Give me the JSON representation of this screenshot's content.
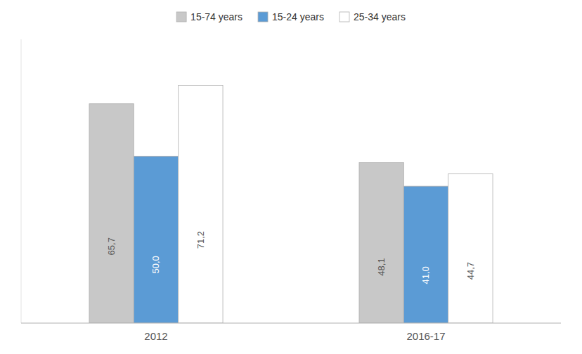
{
  "chart_data": {
    "type": "bar",
    "categories": [
      "2012",
      "2016-17"
    ],
    "series": [
      {
        "name": "15-74 years",
        "color": "#c8c8c8",
        "values": [
          65.7,
          48.1
        ],
        "value_labels": [
          "65,7",
          "48,1"
        ]
      },
      {
        "name": "15-24 years",
        "color": "#5b9bd5",
        "values": [
          50.0,
          41.0
        ],
        "value_labels": [
          "50,0",
          "41,0"
        ]
      },
      {
        "name": "25-34 years",
        "color": "#ffffff",
        "values": [
          71.2,
          44.7
        ],
        "value_labels": [
          "71,2",
          "44,7"
        ]
      }
    ],
    "ylim": [
      0,
      85
    ],
    "data_labels": true,
    "tick_labels": "x",
    "legend": "top",
    "grid": false
  }
}
